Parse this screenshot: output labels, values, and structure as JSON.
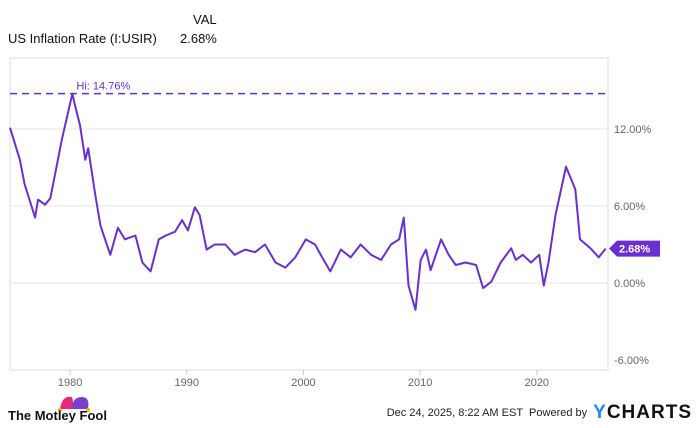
{
  "header": {
    "col_label": "VAL",
    "series_name": "US Inflation Rate (I:USIR)",
    "series_value": "2.68%"
  },
  "footer": {
    "brand": "The Motley Fool",
    "timestamp": "Dec 24, 2025, 8:22 AM EST",
    "powered_by": "Powered by",
    "ycharts": "YCHARTS"
  },
  "colors": {
    "line": "#6a2fd0",
    "grid": "#e3e3e3",
    "axis_text": "#666666"
  },
  "chart_data": {
    "type": "line",
    "title": "US Inflation Rate (I:USIR)",
    "xlabel": "",
    "ylabel": "",
    "xlim": [
      1974.85,
      2026.1
    ],
    "ylim": [
      -6,
      14.76
    ],
    "x_ticks": [
      1980,
      1990,
      2000,
      2010,
      2020
    ],
    "x_tick_labels": [
      "1980",
      "1990",
      "2000",
      "2010",
      "2020"
    ],
    "y_ticks": [
      12,
      6,
      0,
      -6
    ],
    "y_tick_labels": [
      "12.00%",
      "6.00%",
      "0.00%",
      "-6.00%"
    ],
    "high": {
      "value": 14.76,
      "label": "Hi: 14.76%"
    },
    "last": {
      "value": 2.68,
      "label": "2.68%"
    },
    "grid": true,
    "series": [
      {
        "name": "US Inflation Rate",
        "x": [
          1974.85,
          1975.7,
          1976.1,
          1977.0,
          1977.25,
          1977.85,
          1978.3,
          1978.7,
          1979.3,
          1980.2,
          1980.4,
          1980.85,
          1981.3,
          1981.55,
          1982.15,
          1982.6,
          1983.0,
          1983.45,
          1984.1,
          1984.7,
          1985.6,
          1986.2,
          1986.9,
          1987.6,
          1988.2,
          1989.0,
          1989.6,
          1990.1,
          1990.7,
          1991.1,
          1991.7,
          1992.4,
          1993.3,
          1994.1,
          1995.0,
          1995.85,
          1996.7,
          1997.6,
          1998.45,
          1999.3,
          2000.2,
          2001.0,
          2001.6,
          2002.3,
          2003.2,
          2004.05,
          2004.9,
          2005.8,
          2006.65,
          2007.5,
          2008.2,
          2008.6,
          2009.0,
          2009.6,
          2010.05,
          2010.5,
          2010.9,
          2011.8,
          2012.45,
          2013.05,
          2013.9,
          2014.8,
          2015.4,
          2016.1,
          2016.9,
          2017.8,
          2018.2,
          2018.8,
          2019.5,
          2020.2,
          2020.6,
          2021.0,
          2021.6,
          2022.2,
          2022.5,
          2023.3,
          2023.7,
          2024.6,
          2025.3,
          2025.9
        ],
        "values": [
          12.1,
          9.6,
          7.7,
          5.1,
          6.5,
          6.1,
          6.6,
          8.4,
          11.2,
          14.76,
          13.9,
          12.3,
          9.6,
          10.5,
          6.9,
          4.5,
          3.4,
          2.2,
          4.3,
          3.4,
          3.7,
          1.6,
          0.9,
          3.4,
          3.7,
          4.0,
          4.9,
          4.1,
          5.9,
          5.3,
          2.6,
          3.0,
          3.0,
          2.2,
          2.6,
          2.4,
          3.0,
          1.6,
          1.2,
          2.0,
          3.4,
          3.0,
          2.0,
          0.9,
          2.6,
          2.0,
          3.0,
          2.2,
          1.8,
          3.0,
          3.4,
          5.1,
          -0.2,
          -2.1,
          1.8,
          2.6,
          1.0,
          3.4,
          2.2,
          1.4,
          1.6,
          1.4,
          -0.4,
          0.1,
          1.6,
          2.7,
          1.8,
          2.2,
          1.6,
          2.2,
          -0.2,
          1.6,
          5.3,
          7.8,
          9.06,
          7.3,
          3.4,
          2.7,
          2.0,
          2.68
        ]
      }
    ]
  }
}
